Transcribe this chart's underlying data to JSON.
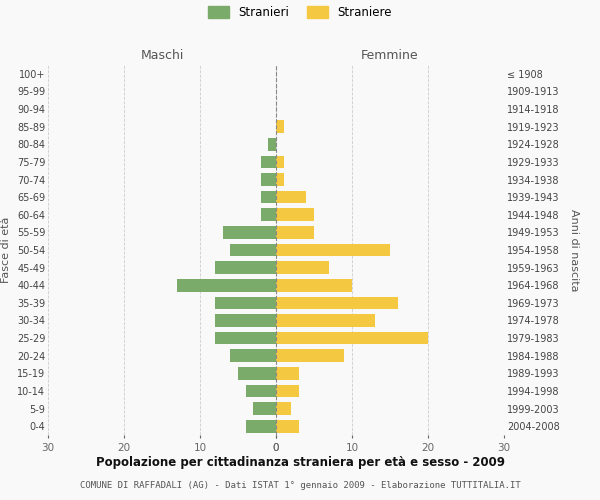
{
  "age_groups": [
    "0-4",
    "5-9",
    "10-14",
    "15-19",
    "20-24",
    "25-29",
    "30-34",
    "35-39",
    "40-44",
    "45-49",
    "50-54",
    "55-59",
    "60-64",
    "65-69",
    "70-74",
    "75-79",
    "80-84",
    "85-89",
    "90-94",
    "95-99",
    "100+"
  ],
  "birth_years": [
    "2004-2008",
    "1999-2003",
    "1994-1998",
    "1989-1993",
    "1984-1988",
    "1979-1983",
    "1974-1978",
    "1969-1973",
    "1964-1968",
    "1959-1963",
    "1954-1958",
    "1949-1953",
    "1944-1948",
    "1939-1943",
    "1934-1938",
    "1929-1933",
    "1924-1928",
    "1919-1923",
    "1914-1918",
    "1909-1913",
    "≤ 1908"
  ],
  "maschi": [
    4,
    3,
    4,
    5,
    6,
    8,
    8,
    8,
    13,
    8,
    6,
    7,
    2,
    2,
    2,
    2,
    1,
    0,
    0,
    0,
    0
  ],
  "femmine": [
    3,
    2,
    3,
    3,
    9,
    20,
    13,
    16,
    10,
    7,
    15,
    5,
    5,
    4,
    1,
    1,
    0,
    1,
    0,
    0,
    0
  ],
  "maschi_color": "#7aab6a",
  "femmine_color": "#f5c842",
  "title": "Popolazione per cittadinanza straniera per età e sesso - 2009",
  "subtitle": "COMUNE DI RAFFADALI (AG) - Dati ISTAT 1° gennaio 2009 - Elaborazione TUTTITALIA.IT",
  "left_label": "Maschi",
  "right_label": "Femmine",
  "left_axis_label": "Fasce di età",
  "right_axis_label": "Anni di nascita",
  "legend_maschi": "Stranieri",
  "legend_femmine": "Straniere",
  "xlim": 30,
  "background_color": "#f9f9f9"
}
